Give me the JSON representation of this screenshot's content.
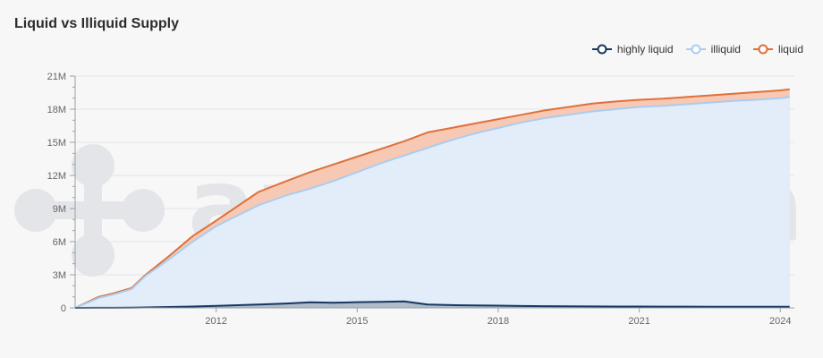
{
  "chart_data": {
    "type": "area",
    "title": "Liquid vs Illiquid Supply",
    "watermark": "amberdata",
    "xlabel": "",
    "ylabel": "",
    "x_range": [
      2009.0,
      2024.3
    ],
    "ylim": [
      0,
      21000000
    ],
    "y_ticks": [
      {
        "value": 0,
        "label": "0"
      },
      {
        "value": 3000000,
        "label": "3M"
      },
      {
        "value": 6000000,
        "label": "6M"
      },
      {
        "value": 9000000,
        "label": "9M"
      },
      {
        "value": 12000000,
        "label": "12M"
      },
      {
        "value": 15000000,
        "label": "15M"
      },
      {
        "value": 18000000,
        "label": "18M"
      },
      {
        "value": 21000000,
        "label": "21M"
      }
    ],
    "x_ticks": [
      {
        "value": 2012,
        "label": "2012"
      },
      {
        "value": 2015,
        "label": "2015"
      },
      {
        "value": 2018,
        "label": "2018"
      },
      {
        "value": 2021,
        "label": "2021"
      },
      {
        "value": 2024,
        "label": "2024"
      }
    ],
    "grid": true,
    "legend_position": "top-right",
    "x": [
      2009.0,
      2009.5,
      2009.8,
      2010.2,
      2010.5,
      2011.0,
      2011.5,
      2012.0,
      2012.9,
      2013.5,
      2014.0,
      2014.5,
      2015.0,
      2015.5,
      2016.0,
      2016.5,
      2017.0,
      2017.5,
      2018.0,
      2018.5,
      2019.0,
      2019.5,
      2020.0,
      2020.5,
      2021.0,
      2021.5,
      2022.0,
      2022.5,
      2023.0,
      2023.5,
      2024.0,
      2024.2
    ],
    "series": [
      {
        "name": "highly liquid",
        "color": "#17375e",
        "fill": "#aebccb",
        "values": [
          0,
          5000,
          10000,
          20000,
          40000,
          80000,
          120000,
          180000,
          300000,
          400000,
          500000,
          460000,
          520000,
          550000,
          580000,
          300000,
          250000,
          220000,
          200000,
          170000,
          150000,
          140000,
          130000,
          120000,
          120000,
          110000,
          110000,
          100000,
          100000,
          100000,
          100000,
          100000
        ]
      },
      {
        "name": "illiquid",
        "color": "#a9cdf0",
        "fill": "#e2edf9",
        "values": [
          0,
          900000,
          1200000,
          1700000,
          2900000,
          4400000,
          6000000,
          7400000,
          9300000,
          10200000,
          10800000,
          11500000,
          12300000,
          13100000,
          13800000,
          14500000,
          15200000,
          15800000,
          16300000,
          16800000,
          17200000,
          17500000,
          17800000,
          18000000,
          18200000,
          18300000,
          18450000,
          18600000,
          18750000,
          18850000,
          19000000,
          19100000
        ]
      },
      {
        "name": "liquid",
        "color": "#e0703a",
        "fill": "#f7c9b4",
        "values": [
          0,
          1000000,
          1300000,
          1800000,
          3000000,
          4700000,
          6500000,
          7900000,
          10500000,
          11500000,
          12300000,
          13000000,
          13700000,
          14400000,
          15100000,
          15900000,
          16300000,
          16700000,
          17100000,
          17500000,
          17900000,
          18200000,
          18500000,
          18700000,
          18850000,
          18950000,
          19100000,
          19250000,
          19400000,
          19550000,
          19700000,
          19800000
        ]
      }
    ]
  }
}
